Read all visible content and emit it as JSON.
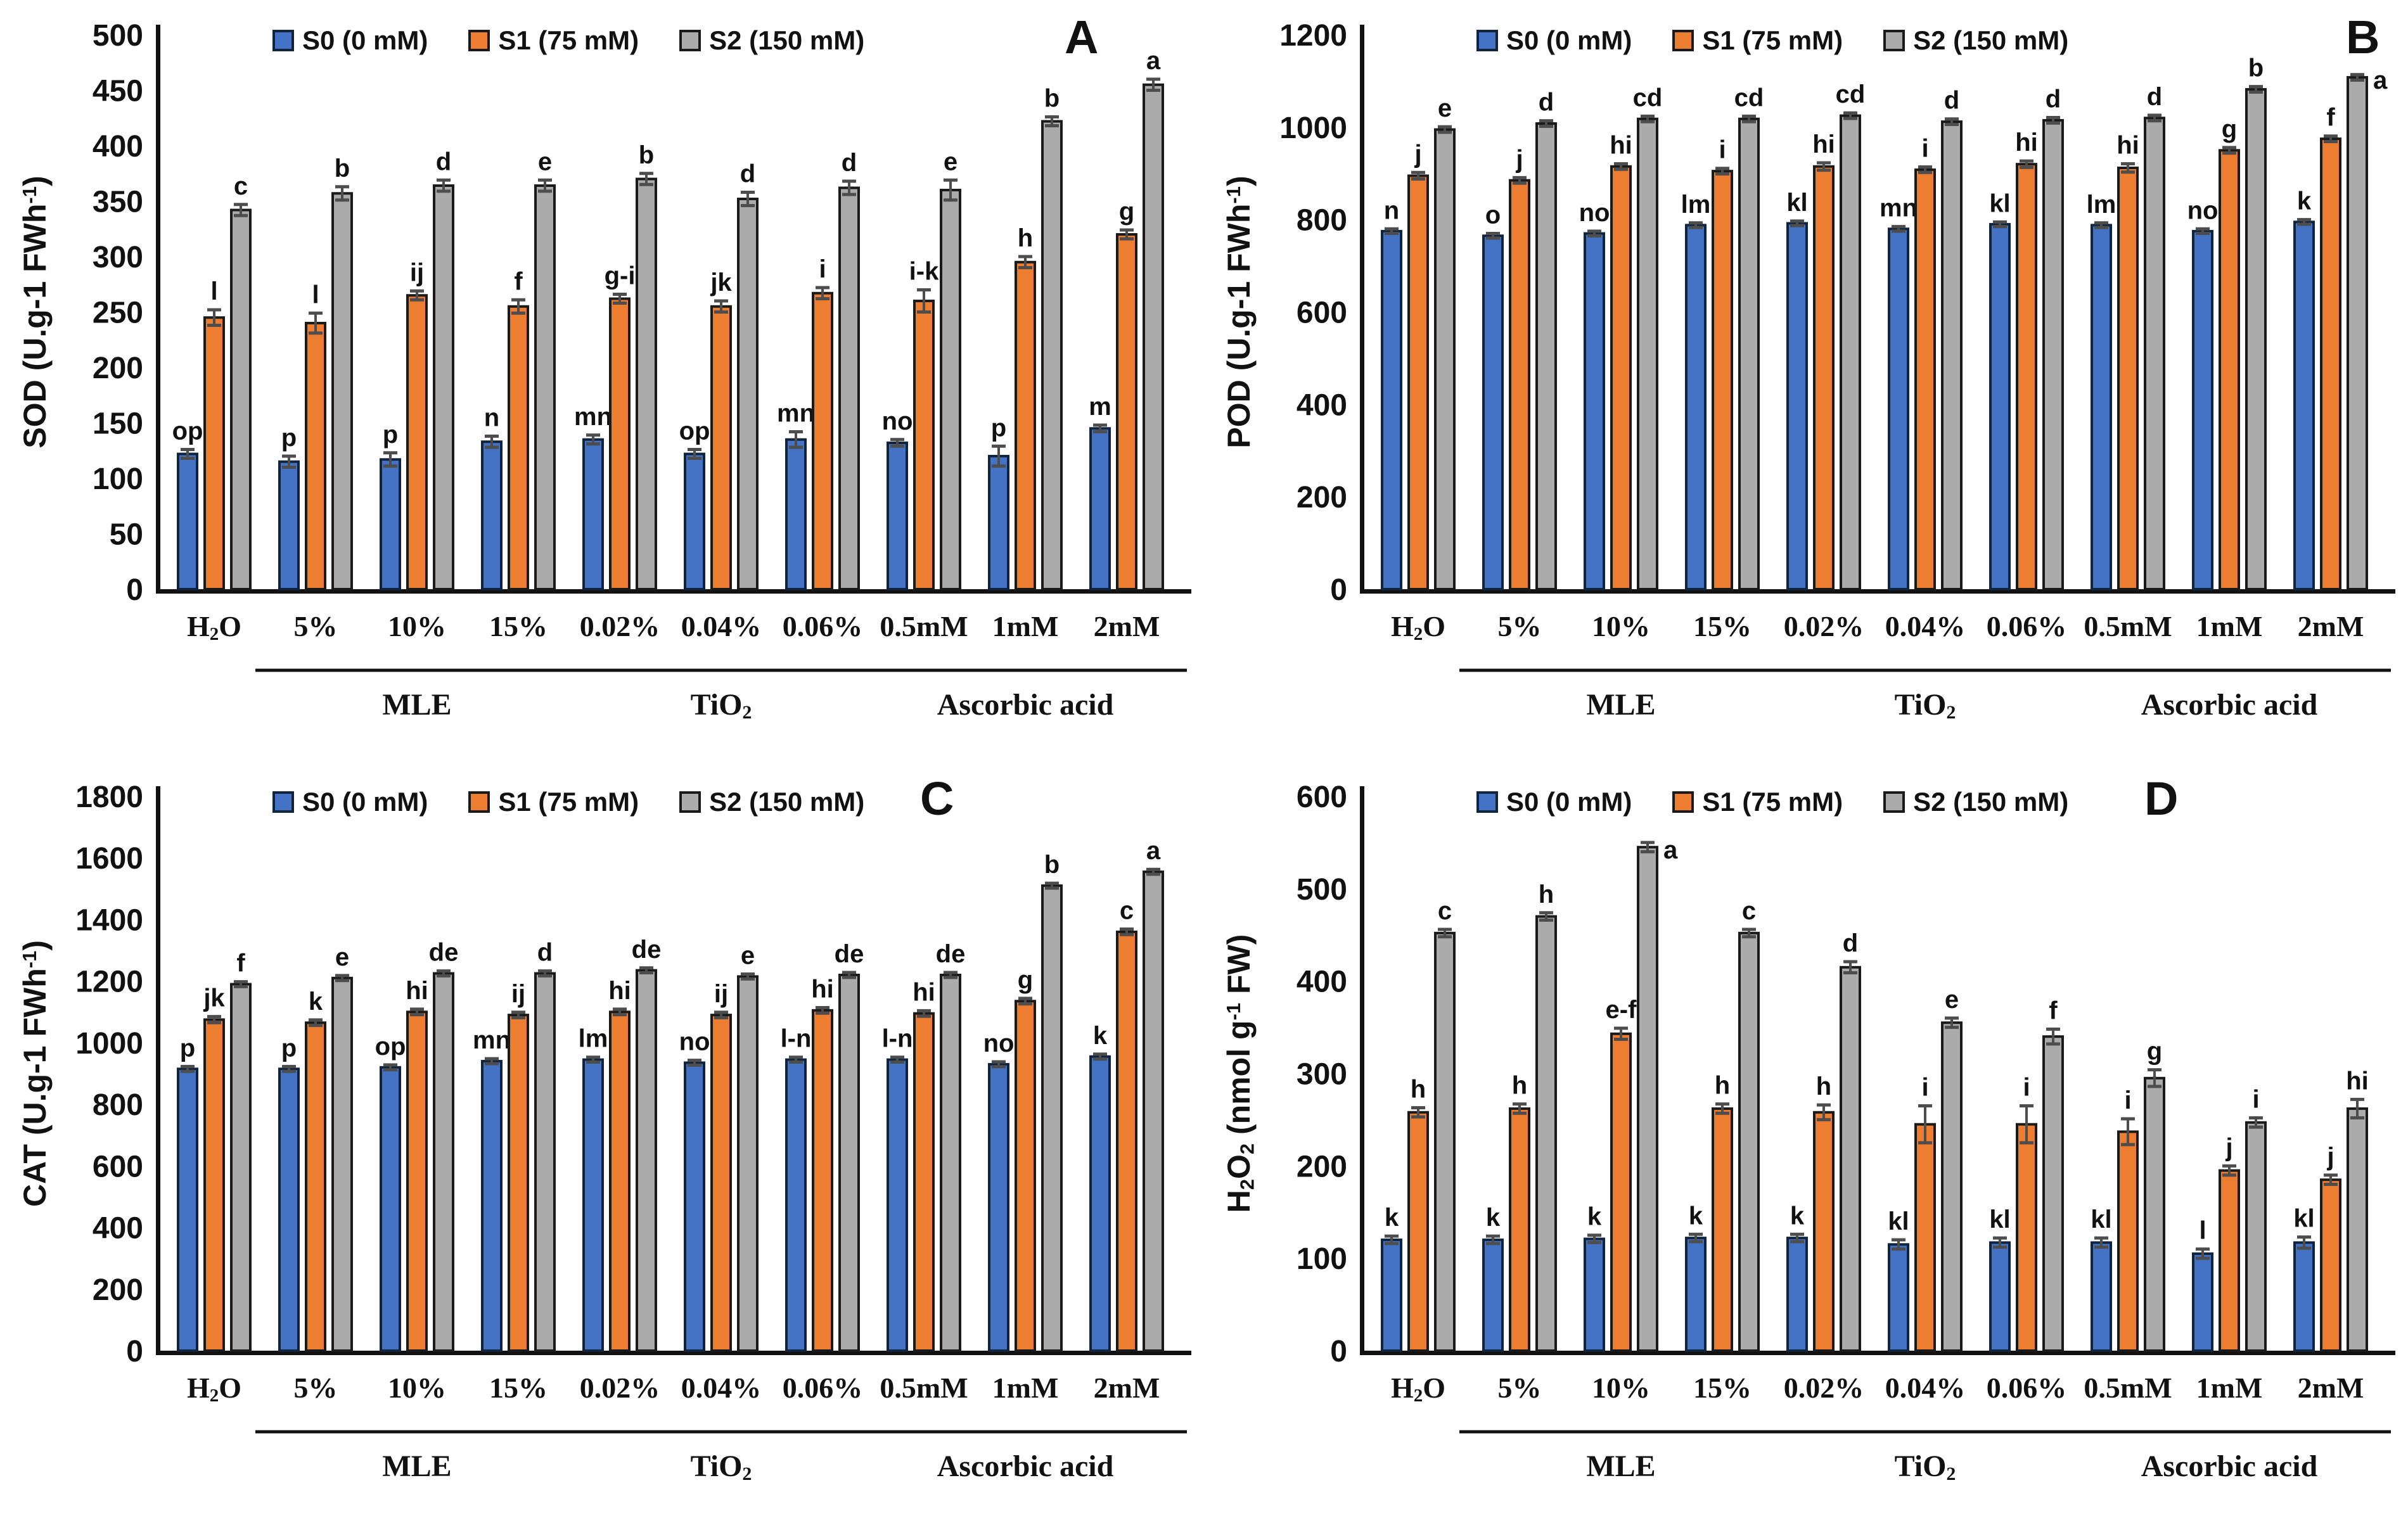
{
  "figure": {
    "series": [
      {
        "name": "S0 (0 mM)",
        "color": "#4472C4",
        "border": "#10243E"
      },
      {
        "name": "S1 (75 mM)",
        "color": "#ED7D31",
        "border": "#1a1a1a"
      },
      {
        "name": "S2 (150 mM)",
        "color": "#ABABAB",
        "border": "#1a1a1a"
      }
    ],
    "error_bar_color": "#4d4d4d",
    "axis_color": "#111111",
    "sections": [
      {
        "label": "MLE",
        "from": 1,
        "to": 3
      },
      {
        "label": "TiO_2_",
        "from": 4,
        "to": 6
      },
      {
        "label": "Ascorbic acid",
        "from": 7,
        "to": 9
      }
    ]
  },
  "chart_data": [
    {
      "panel": "A",
      "type": "bar",
      "title": "",
      "ylabel": "SOD (U.g-1 FWh^-1^)",
      "xlabel": "",
      "ylim": [
        0,
        500
      ],
      "ytick_step": 50,
      "grid": false,
      "legend_position": "top",
      "categories": [
        "H_2_O",
        "5%",
        "10%",
        "15%",
        "0.02%",
        "0.04%",
        "0.06%",
        "0.5mM",
        "1mM",
        "2mM"
      ],
      "series": [
        {
          "name": "S0 (0 mM)",
          "values": [
            122,
            115,
            117,
            133,
            135,
            122,
            135,
            132,
            120,
            145
          ],
          "errors": [
            4,
            5,
            6,
            5,
            4,
            4,
            7,
            3,
            9,
            3
          ],
          "letters": [
            "op",
            "p",
            "p",
            "n",
            "mn",
            "op",
            "mn",
            "no",
            "p",
            "m"
          ]
        },
        {
          "name": "S1 (75 mM)",
          "values": [
            245,
            240,
            265,
            255,
            262,
            255,
            267,
            260,
            295,
            320
          ],
          "errors": [
            7,
            9,
            4,
            6,
            4,
            5,
            5,
            10,
            5,
            4
          ],
          "letters": [
            "l",
            "l",
            "ij",
            "f",
            "g-i",
            "jk",
            "i",
            "i-k",
            "h",
            "g"
          ]
        },
        {
          "name": "S2 (150 mM)",
          "values": [
            342,
            357,
            364,
            364,
            370,
            352,
            362,
            360,
            422,
            455
          ],
          "errors": [
            5,
            6,
            5,
            5,
            5,
            6,
            6,
            9,
            4,
            5
          ],
          "letters": [
            "c",
            "b",
            "d",
            "e",
            "b",
            "d",
            "d",
            "e",
            "b",
            "a"
          ]
        }
      ]
    },
    {
      "panel": "B",
      "type": "bar",
      "title": "",
      "ylabel": "POD (U.g-1 FWh^-1^)",
      "xlabel": "",
      "ylim": [
        0,
        1200
      ],
      "ytick_step": 200,
      "grid": false,
      "legend_position": "top",
      "side_letter": {
        "series": 2,
        "index": 9
      },
      "categories": [
        "H_2_O",
        "5%",
        "10%",
        "15%",
        "0.02%",
        "0.04%",
        "0.06%",
        "0.5mM",
        "1mM",
        "2mM"
      ],
      "series": [
        {
          "name": "S0 (0 mM)",
          "values": [
            775,
            765,
            770,
            788,
            792,
            780,
            790,
            788,
            775,
            795
          ],
          "errors": [
            5,
            5,
            5,
            5,
            5,
            5,
            5,
            5,
            5,
            5
          ],
          "letters": [
            "n",
            "o",
            "no",
            "lm",
            "kl",
            "mn",
            "kl",
            "lm",
            "no",
            "k"
          ]
        },
        {
          "name": "S1 (75 mM)",
          "values": [
            895,
            885,
            915,
            905,
            915,
            908,
            920,
            912,
            950,
            975
          ],
          "errors": [
            7,
            6,
            6,
            6,
            8,
            6,
            7,
            9,
            6,
            6
          ],
          "letters": [
            "j",
            "j",
            "hi",
            "i",
            "hi",
            "i",
            "hi",
            "hi",
            "g",
            "f"
          ]
        },
        {
          "name": "S2 (150 mM)",
          "values": [
            995,
            1008,
            1018,
            1018,
            1025,
            1012,
            1015,
            1020,
            1082,
            1108
          ],
          "errors": [
            6,
            6,
            6,
            6,
            6,
            6,
            6,
            6,
            6,
            6
          ],
          "letters": [
            "e",
            "d",
            "cd",
            "cd",
            "cd",
            "d",
            "d",
            "d",
            "b",
            "a"
          ]
        }
      ]
    },
    {
      "panel": "C",
      "type": "bar",
      "title": "",
      "ylabel": "CAT (U.g-1 FWh^-1^)",
      "xlabel": "",
      "ylim": [
        0,
        1800
      ],
      "ytick_step": 200,
      "grid": false,
      "legend_position": "top",
      "categories": [
        "H_2_O",
        "5%",
        "10%",
        "15%",
        "0.02%",
        "0.04%",
        "0.06%",
        "0.5mM",
        "1mM",
        "2mM"
      ],
      "series": [
        {
          "name": "S0 (0 mM)",
          "values": [
            915,
            915,
            920,
            940,
            945,
            935,
            945,
            945,
            930,
            955
          ],
          "errors": [
            8,
            8,
            8,
            8,
            8,
            8,
            8,
            8,
            8,
            8
          ],
          "letters": [
            "p",
            "p",
            "op",
            "mn",
            "lm",
            "no",
            "l-n",
            "l-n",
            "no",
            "k"
          ]
        },
        {
          "name": "S1 (75 mM)",
          "values": [
            1075,
            1065,
            1100,
            1090,
            1100,
            1090,
            1105,
            1095,
            1135,
            1360
          ],
          "errors": [
            10,
            9,
            9,
            9,
            9,
            9,
            9,
            9,
            9,
            9
          ],
          "letters": [
            "jk",
            "k",
            "hi",
            "ij",
            "hi",
            "ij",
            "hi",
            "hi",
            "g",
            "c"
          ]
        },
        {
          "name": "S2 (150 mM)",
          "values": [
            1190,
            1210,
            1225,
            1225,
            1235,
            1215,
            1220,
            1220,
            1510,
            1555
          ],
          "errors": [
            8,
            8,
            8,
            8,
            8,
            8,
            8,
            8,
            8,
            8
          ],
          "letters": [
            "f",
            "e",
            "de",
            "d",
            "de",
            "e",
            "de",
            "de",
            "b",
            "a"
          ]
        }
      ]
    },
    {
      "panel": "D",
      "type": "bar",
      "title": "",
      "ylabel": "H_2_O_2_ (nmol g^-1^ FW)",
      "xlabel": "",
      "ylim": [
        0,
        600
      ],
      "ytick_step": 100,
      "grid": false,
      "legend_position": "top",
      "side_letter": {
        "series": 2,
        "index": 2
      },
      "categories": [
        "H_2_O",
        "5%",
        "10%",
        "15%",
        "0.02%",
        "0.04%",
        "0.06%",
        "0.5mM",
        "1mM",
        "2mM"
      ],
      "series": [
        {
          "name": "S0 (0 mM)",
          "values": [
            120,
            120,
            121,
            122,
            122,
            115,
            117,
            117,
            105,
            117
          ],
          "errors": [
            4,
            4,
            4,
            4,
            4,
            5,
            5,
            5,
            5,
            6
          ],
          "letters": [
            "k",
            "k",
            "k",
            "k",
            "k",
            "kl",
            "kl",
            "kl",
            "l",
            "kl"
          ]
        },
        {
          "name": "S1 (75 mM)",
          "values": [
            258,
            262,
            343,
            262,
            258,
            245,
            245,
            237,
            195,
            185
          ],
          "errors": [
            5,
            5,
            6,
            5,
            8,
            20,
            20,
            14,
            5,
            5
          ],
          "letters": [
            "h",
            "h",
            "e-f",
            "h",
            "h",
            "i",
            "i",
            "i",
            "j",
            "j"
          ]
        },
        {
          "name": "S2 (150 mM)",
          "values": [
            452,
            470,
            545,
            452,
            415,
            355,
            340,
            295,
            247,
            262
          ],
          "errors": [
            4,
            4,
            5,
            4,
            6,
            5,
            8,
            9,
            5,
            10
          ],
          "letters": [
            "c",
            "h",
            "a",
            "c",
            "d",
            "e",
            "f",
            "g",
            "i",
            "hi"
          ]
        }
      ]
    }
  ]
}
